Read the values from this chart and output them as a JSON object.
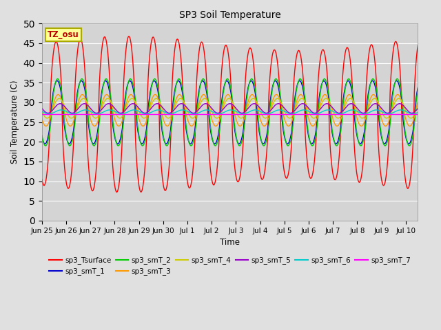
{
  "title": "SP3 Soil Temperature",
  "ylabel": "Soil Temperature (C)",
  "xlabel": "Time",
  "tz_label": "TZ_osu",
  "ylim": [
    0,
    50
  ],
  "yticks": [
    0,
    5,
    10,
    15,
    20,
    25,
    30,
    35,
    40,
    45,
    50
  ],
  "xlim": [
    0,
    15.5
  ],
  "series_colors": {
    "sp3_Tsurface": "#ff0000",
    "sp3_smT_1": "#0000cc",
    "sp3_smT_2": "#00cc00",
    "sp3_smT_3": "#ff9900",
    "sp3_smT_4": "#cccc00",
    "sp3_smT_5": "#9900cc",
    "sp3_smT_6": "#00cccc",
    "sp3_smT_7": "#ff00ff"
  },
  "x_tick_labels": [
    "Jun 25",
    "Jun 26",
    "Jun 27",
    "Jun 28",
    "Jun 29",
    "Jun 30",
    "Jul 1",
    "Jul 2",
    "Jul 3",
    "Jul 4",
    "Jul 5",
    "Jul 6",
    "Jul 7",
    "Jul 8",
    "Jul 9",
    "Jul 10"
  ],
  "x_tick_positions": [
    0,
    1,
    2,
    3,
    4,
    5,
    6,
    7,
    8,
    9,
    10,
    11,
    12,
    13,
    14,
    15
  ],
  "background_color": "#e0e0e0",
  "plot_bg_color": "#d4d4d4",
  "grid_color": "#ffffff",
  "linewidth": 1.0,
  "figwidth": 6.4,
  "figheight": 4.8,
  "dpi": 100
}
